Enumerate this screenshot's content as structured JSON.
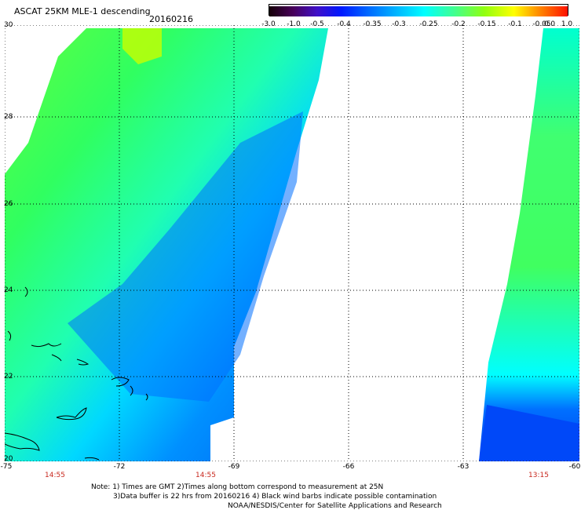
{
  "header": {
    "title": "ASCAT 25KM MLE-1 descending",
    "date": "20160216"
  },
  "colorbar": {
    "tick_labels": [
      "-3.0",
      "-1.0",
      "-0.5",
      "-0.4",
      "-0.35",
      "-0.3",
      "-0.25",
      "-0.2",
      "-0.15",
      "-0.1",
      "-0.05",
      "0.0",
      "1.0"
    ],
    "colors": [
      "#200010",
      "#500060",
      "#3010c0",
      "#0030ff",
      "#0080ff",
      "#00c0ff",
      "#00ffff",
      "#40ff80",
      "#a0ff00",
      "#ffff00",
      "#ff8000",
      "#ff2000"
    ]
  },
  "axes": {
    "lat_labels": [
      "30",
      "28",
      "26",
      "24",
      "22",
      "20"
    ],
    "lon_labels": [
      "-75",
      "-72",
      "-69",
      "-66",
      "-63",
      "-60"
    ],
    "time_labels": [
      "14:55",
      "14:55",
      "13:15"
    ]
  },
  "notes": [
    "Note: 1) Times are GMT 2)Times along bottom correspond to measurement at 25N",
    "3)Data buffer is 22 hrs from 20160216 4) Black wind barbs indicate possible contamination",
    "NOAA/NESDIS/Center for Satellite Applications and Research"
  ],
  "style": {
    "time_color": "#c8281e",
    "grid_color": "#000000"
  }
}
